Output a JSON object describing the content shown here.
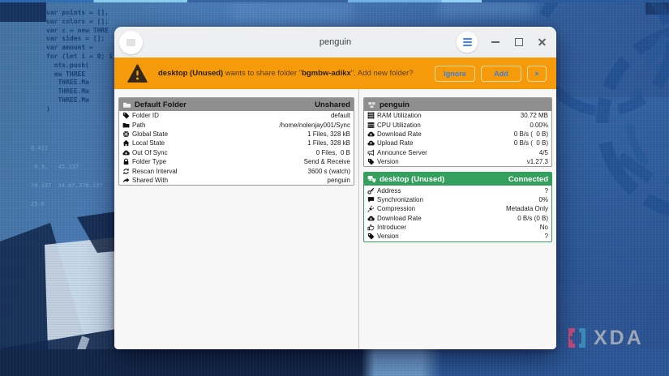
{
  "wallpaper": {
    "code_text": "var points = [],\nvar colors = [];\nvar c = new THRE\nvar sides = [];\nvar amount =\nfor (let i = 0; i\n  nts.push(\n  ew THREE\n   THREE.Ma\n   THREE.Ma\n   THREE.Ma\n)",
    "faint_text": "0.411\n-0.9,  -45.337\n70.137  54.67,370.137\n25.6",
    "watermark_text": "XDA"
  },
  "window": {
    "title": "penguin"
  },
  "banner": {
    "device": "desktop (Unused)",
    "message_mid": " wants to share folder \"",
    "folder": "bgmbw-adikx",
    "message_end": "\". Add new folder?",
    "ignore_label": "Ignore",
    "add_label": "Add",
    "dismiss_label": "×"
  },
  "panels": {
    "folder": {
      "title": "Default Folder",
      "status": "Unshared",
      "icon": "folder-white-icon",
      "rows": [
        {
          "icon": "tag-icon",
          "label": "Folder ID",
          "value": "default"
        },
        {
          "icon": "folder-icon",
          "label": "Path",
          "value": "/home/nolenjay001/Sync"
        },
        {
          "icon": "globe-icon",
          "label": "Global State",
          "value": "1 Files, 328 kB"
        },
        {
          "icon": "home-icon",
          "label": "Local State",
          "value": "1 Files, 328 kB"
        },
        {
          "icon": "cloud-down-icon",
          "label": "Out Of Sync",
          "value": "0 Files,  0 B"
        },
        {
          "icon": "lock-icon",
          "label": "Folder Type",
          "value": "Send & Receive"
        },
        {
          "icon": "refresh-icon",
          "label": "Rescan Interval",
          "value": "3600 s (watch)"
        },
        {
          "icon": "share-icon",
          "label": "Shared With",
          "value": "penguin"
        }
      ]
    },
    "local_device": {
      "title": "penguin",
      "icon": "device-icon",
      "rows": [
        {
          "icon": "ram-icon",
          "label": "RAM Utilization",
          "value": "30.72 MB"
        },
        {
          "icon": "cpu-icon",
          "label": "CPU Utilization",
          "value": "0.00%"
        },
        {
          "icon": "cloud-down-icon",
          "label": "Download Rate",
          "value": "0 B/s (  0 B)"
        },
        {
          "icon": "cloud-up-icon",
          "label": "Upload Rate",
          "value": "0 B/s (  0 B)"
        },
        {
          "icon": "megaphone-icon",
          "label": "Announce Server",
          "value": "4/5"
        },
        {
          "icon": "tag-icon",
          "label": "Version",
          "value": "v1.27.3"
        }
      ]
    },
    "remote_device": {
      "title": "desktop (Unused)",
      "status": "Connected",
      "icon": "monitor-network-icon",
      "rows": [
        {
          "icon": "key-icon",
          "label": "Address",
          "value": "?"
        },
        {
          "icon": "chat-icon",
          "label": "Synchronization",
          "value": "0%"
        },
        {
          "icon": "plug-icon",
          "label": "Compression",
          "value": "Metadata Only"
        },
        {
          "icon": "cloud-down-icon",
          "label": "Download Rate",
          "value": "0 B/s (0 B)"
        },
        {
          "icon": "thumbs-up-icon",
          "label": "Introducer",
          "value": "No"
        },
        {
          "icon": "tag-icon",
          "label": "Version",
          "value": "?"
        }
      ]
    }
  },
  "colors": {
    "banner_orange": "#F59B0B",
    "button_blue": "#3D7EDE",
    "header_gray": "#8F8F8F",
    "connected_green": "#35A05E",
    "titlebar_gray": "#EDEFF1"
  }
}
